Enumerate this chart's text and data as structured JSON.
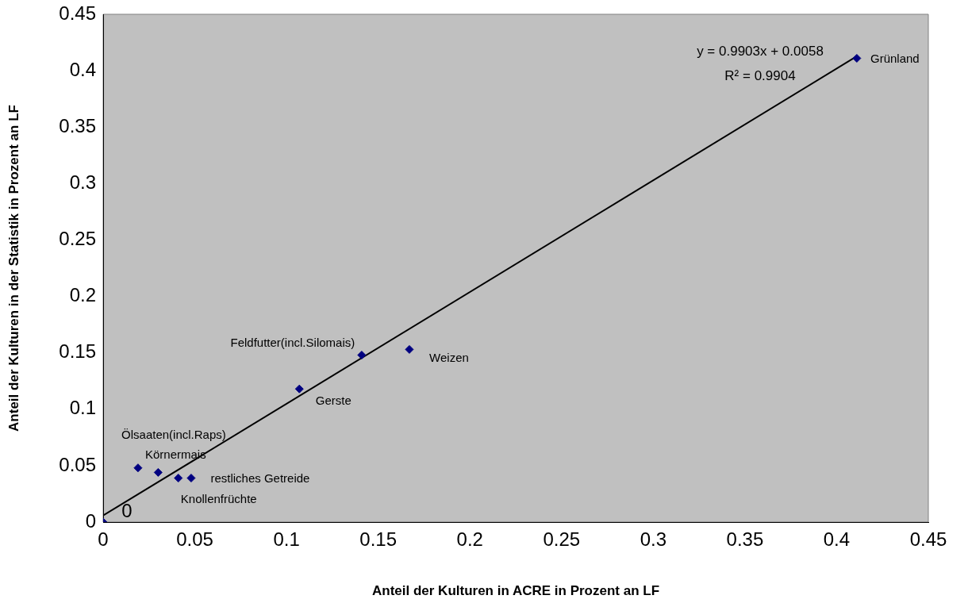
{
  "chart_data": {
    "type": "scatter",
    "xlabel": "Anteil der Kulturen in ACRE in Prozent an LF",
    "ylabel": "Anteil der Kulturen in der Statistik in Prozent an LF",
    "xlim": [
      0,
      0.45
    ],
    "xticks": [
      0,
      0.05,
      0.1,
      0.15,
      0.2,
      0.25,
      0.3,
      0.35,
      0.4,
      0.45
    ],
    "ylim": [
      0,
      0.45
    ],
    "yticks": [
      0,
      0.05,
      0.1,
      0.15,
      0.2,
      0.25,
      0.3,
      0.35,
      0.4,
      0.45
    ],
    "grid": false,
    "legend": false,
    "marker": "diamond",
    "series": [
      {
        "type": "scatter",
        "color": "#000080",
        "x": [
          0,
          0.019,
          0.03,
          0.041,
          0.048,
          0.107,
          0.141,
          0.167,
          0.411
        ],
        "values": [
          0,
          0.048,
          0.044,
          0.039,
          0.039,
          0.118,
          0.148,
          0.153,
          0.411
        ]
      },
      {
        "type": "line",
        "color": "#000000",
        "marker": "none",
        "x": [
          0,
          0.411
        ],
        "values": [
          0.0058,
          0.4128
        ]
      }
    ],
    "annotations": [
      {
        "text": "0",
        "x": 0,
        "y": 0
      },
      {
        "text": "Ölsaaten(incl.Raps)",
        "x": 0.019,
        "y": 0.048
      },
      {
        "text": "Körnermais",
        "x": 0.03,
        "y": 0.044
      },
      {
        "text": "restliches Getreide",
        "x": 0.048,
        "y": 0.039
      },
      {
        "text": "Knollenfrüchte",
        "x": 0.041,
        "y": 0.039
      },
      {
        "text": "Gerste",
        "x": 0.107,
        "y": 0.118
      },
      {
        "text": "Feldfutter(incl.Silomais)",
        "x": 0.141,
        "y": 0.148
      },
      {
        "text": "Weizen",
        "x": 0.167,
        "y": 0.153
      },
      {
        "text": "Grünland",
        "x": 0.411,
        "y": 0.411
      },
      "y = 0.9903x + 0.0058",
      "R² = 0.9904"
    ]
  }
}
